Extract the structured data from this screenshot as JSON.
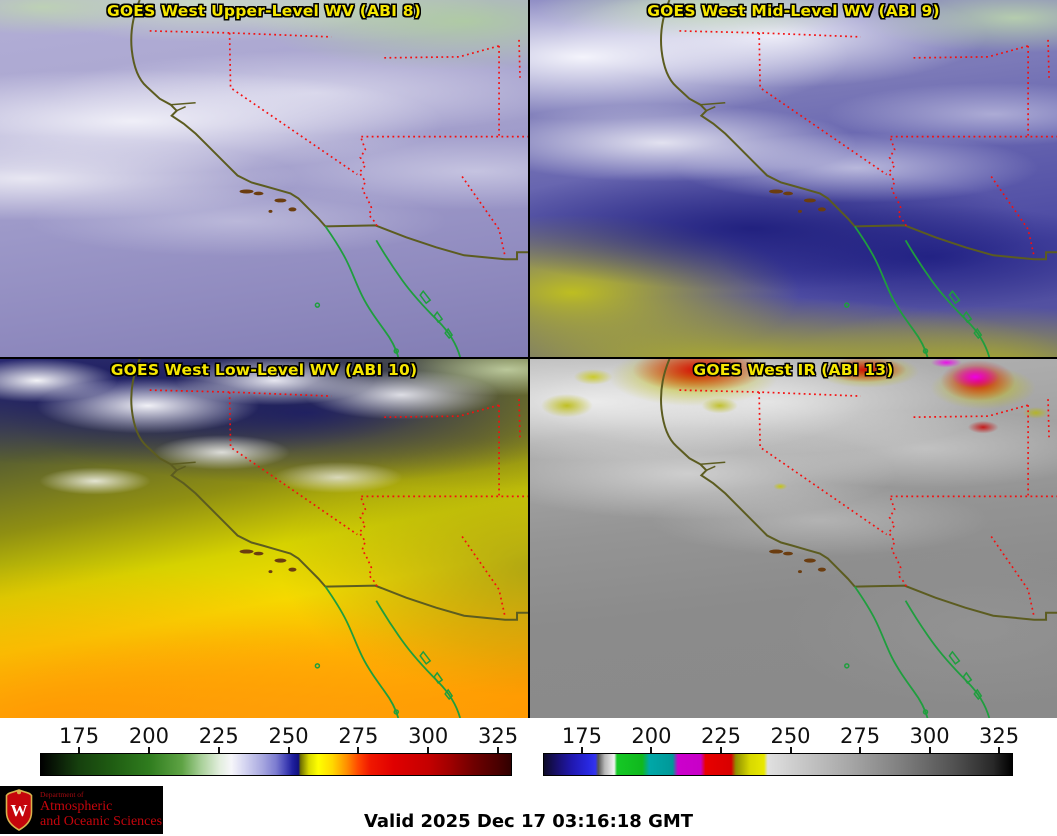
{
  "panels": [
    {
      "title": "GOES West Upper-Level WV (ABI 8)",
      "channel": "ABI 8"
    },
    {
      "title": "GOES West Mid-Level WV (ABI 9)",
      "channel": "ABI 9"
    },
    {
      "title": "GOES West Low-Level WV (ABI 10)",
      "channel": "ABI 10"
    },
    {
      "title": "GOES West IR (ABI 13)",
      "channel": "ABI 13"
    }
  ],
  "colorbars": {
    "bars": [
      {
        "id": "wv",
        "name": "water-vapor-temperature-scale",
        "range": [
          161,
          330
        ],
        "ticks": [
          175,
          200,
          225,
          250,
          275,
          300,
          325
        ]
      },
      {
        "id": "ir",
        "name": "ir-temperature-scale",
        "range": [
          161,
          330
        ],
        "ticks": [
          175,
          200,
          225,
          250,
          275,
          300,
          325
        ]
      }
    ]
  },
  "footer": {
    "valid_time": "Valid 2025 Dec 17 03:16:18 GMT",
    "logo": {
      "line1": "Department of",
      "line2": "Atmospheric",
      "line3": "and Oceanic Sciences",
      "crest_letter": "W"
    }
  },
  "colors": {
    "title_yellow": "#f5e600",
    "state_border_red": "#f50f0f",
    "coastline_olive": "#5c5c20",
    "baja_green": "#1f9e3e",
    "logo_red": "#c5050c"
  }
}
